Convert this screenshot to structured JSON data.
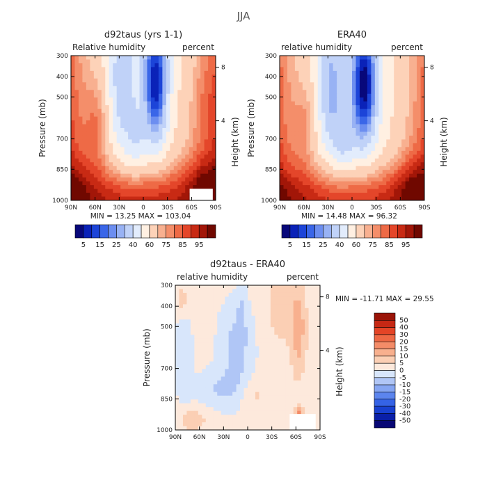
{
  "figure_title": "JJA",
  "chart_data": [
    {
      "type": "heatmap",
      "title": "d92taus (yrs 1-1)",
      "subtitle_left": "Relative humidity",
      "subtitle_right": "percent",
      "ylabel": "Pressure (mb)",
      "ylabel_right": "Height (km)",
      "x_ticks": [
        "90N",
        "60N",
        "30N",
        "0",
        "30S",
        "60S",
        "90S"
      ],
      "y_ticks": [
        "300",
        "400",
        "500",
        "700",
        "850",
        "1000"
      ],
      "y_ticks_right": [
        "8",
        "4"
      ],
      "ylim": [
        1000,
        300
      ],
      "stats": "MIN =   13.25   MAX =  103.04",
      "colorbar": {
        "orientation": "horizontal",
        "labels": [
          "5",
          "15",
          "25",
          "40",
          "60",
          "75",
          "85",
          "95"
        ],
        "levels": [
          0,
          5,
          10,
          15,
          20,
          25,
          30,
          40,
          50,
          60,
          70,
          75,
          80,
          85,
          90,
          95,
          100
        ],
        "colors": [
          "#08087a",
          "#0a22b8",
          "#1c44d8",
          "#3a66e8",
          "#6c8ef0",
          "#98b2f4",
          "#c0d2f8",
          "#e2ecfc",
          "#fff0e2",
          "#fdd2b8",
          "#f8b090",
          "#f48e6a",
          "#ee6a46",
          "#e4462a",
          "#c82a14",
          "#a21608",
          "#700800"
        ]
      }
    },
    {
      "type": "heatmap",
      "title": "ERA40",
      "subtitle_left": "relative humidity",
      "subtitle_right": "percent",
      "ylabel": "Pressure (mb)",
      "ylabel_right": "Height (km)",
      "x_ticks": [
        "90N",
        "60N",
        "30N",
        "0",
        "30S",
        "60S",
        "90S"
      ],
      "y_ticks": [
        "300",
        "400",
        "500",
        "700",
        "850",
        "1000"
      ],
      "y_ticks_right": [
        "8",
        "4"
      ],
      "ylim": [
        1000,
        300
      ],
      "stats": "MIN =   14.48   MAX =   96.32",
      "colorbar": {
        "orientation": "horizontal",
        "labels": [
          "5",
          "15",
          "25",
          "40",
          "60",
          "75",
          "85",
          "95"
        ],
        "levels": [
          0,
          5,
          10,
          15,
          20,
          25,
          30,
          40,
          50,
          60,
          70,
          75,
          80,
          85,
          90,
          95,
          100
        ],
        "colors": [
          "#08087a",
          "#0a22b8",
          "#1c44d8",
          "#3a66e8",
          "#6c8ef0",
          "#98b2f4",
          "#c0d2f8",
          "#e2ecfc",
          "#fff0e2",
          "#fdd2b8",
          "#f8b090",
          "#f48e6a",
          "#ee6a46",
          "#e4462a",
          "#c82a14",
          "#a21608",
          "#700800"
        ]
      }
    },
    {
      "type": "heatmap",
      "title": "d92taus - ERA40",
      "subtitle_left": "relative humidity",
      "subtitle_right": "percent",
      "ylabel": "Pressure (mb)",
      "ylabel_right": "Height (km)",
      "x_ticks": [
        "90N",
        "60N",
        "30N",
        "0",
        "30S",
        "60S",
        "90S"
      ],
      "y_ticks": [
        "300",
        "400",
        "500",
        "700",
        "850",
        "1000"
      ],
      "y_ticks_right": [
        "8",
        "4"
      ],
      "ylim": [
        1000,
        300
      ],
      "stats": "MIN =  -11.71   MAX =   29.55",
      "colorbar": {
        "orientation": "vertical",
        "labels": [
          "50",
          "40",
          "30",
          "20",
          "15",
          "10",
          "5",
          "0",
          "-5",
          "-10",
          "-15",
          "-20",
          "-30",
          "-40",
          "-50"
        ],
        "levels": [
          -60,
          -50,
          -40,
          -30,
          -20,
          -15,
          -10,
          -5,
          0,
          5,
          10,
          15,
          20,
          30,
          40,
          50,
          60
        ],
        "colors": [
          "#080875",
          "#0a1fa8",
          "#1840d0",
          "#3563e6",
          "#5c85ee",
          "#86a6f2",
          "#b0c6f6",
          "#d8e6fb",
          "#fde9dc",
          "#fbcfb4",
          "#f8b08e",
          "#f48c68",
          "#ee6844",
          "#e44426",
          "#c62814",
          "#9a1408"
        ]
      }
    }
  ]
}
